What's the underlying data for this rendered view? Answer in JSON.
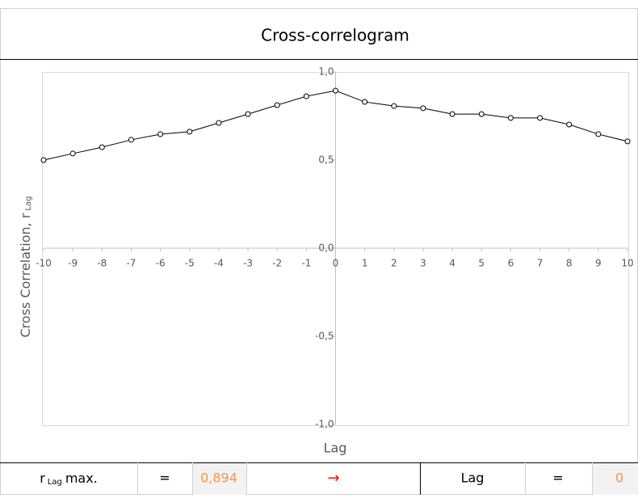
{
  "chart_data": {
    "type": "line",
    "title": "Cross-correlogram",
    "xlabel": "Lag",
    "ylabel": "Cross Correlation, r",
    "ylabel_sub": "Lag",
    "x": [
      -10,
      -9,
      -8,
      -7,
      -6,
      -5,
      -4,
      -3,
      -2,
      -1,
      0,
      1,
      2,
      3,
      4,
      5,
      6,
      7,
      8,
      9,
      10
    ],
    "series": [
      {
        "color": "#000000",
        "values": [
          0.5,
          0.537,
          0.573,
          0.615,
          0.647,
          0.661,
          0.711,
          0.761,
          0.812,
          0.862,
          0.894,
          0.83,
          0.807,
          0.794,
          0.761,
          0.761,
          0.739,
          0.739,
          0.702,
          0.647,
          0.606
        ]
      }
    ],
    "xlim": [
      -10,
      10
    ],
    "xticks": [
      -10,
      -9,
      -8,
      -7,
      -6,
      -5,
      -4,
      -3,
      -2,
      -1,
      0,
      1,
      2,
      3,
      4,
      5,
      6,
      7,
      8,
      9,
      10
    ],
    "ylim": [
      -1,
      1
    ],
    "yticks": [
      {
        "value": 1,
        "label": "1,0"
      },
      {
        "value": 0.5,
        "label": "0,5"
      },
      {
        "value": 0,
        "label": "0,0"
      },
      {
        "value": -0.5,
        "label": "-0,5"
      },
      {
        "value": -1,
        "label": "-1,0"
      }
    ]
  },
  "summary": {
    "r": "r",
    "r_sub": "Lag",
    "r_suffix": "max.",
    "eq1": "=",
    "rmax": "0,894",
    "arrow": "→",
    "lag_label": "Lag",
    "eq2": "=",
    "lag": "0"
  }
}
